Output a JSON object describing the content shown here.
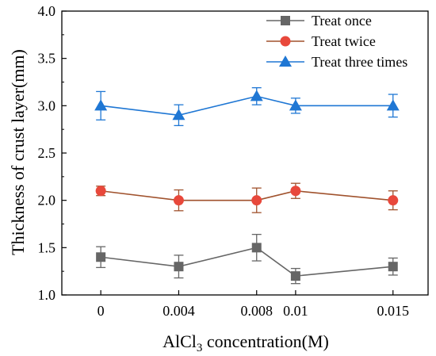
{
  "chart_data": {
    "type": "line",
    "x": [
      "0",
      "0.004",
      "0.008",
      "0.01",
      "0.015"
    ],
    "x_values": [
      0,
      0.004,
      0.008,
      0.01,
      0.015
    ],
    "xlabel": {
      "prefix": "AlCl",
      "subscript": "3",
      "suffix": " concentration(M)"
    },
    "ylabel": "Thickness of crust layer(mm)",
    "ylim": [
      1.0,
      4.0
    ],
    "xlim": [
      -0.002,
      0.0168
    ],
    "yticks": [
      "1.0",
      "1.5",
      "2.0",
      "2.5",
      "3.0",
      "3.5",
      "4.0"
    ],
    "ytick_values": [
      1.0,
      1.5,
      2.0,
      2.5,
      3.0,
      3.5,
      4.0
    ],
    "grid": false,
    "legend_position": "top-right",
    "series": [
      {
        "name": "Treat once",
        "values": [
          1.4,
          1.3,
          1.5,
          1.2,
          1.3
        ],
        "errors": [
          0.11,
          0.12,
          0.14,
          0.08,
          0.09
        ],
        "color": "#666666",
        "marker": "square"
      },
      {
        "name": "Treat twice",
        "values": [
          2.1,
          2.0,
          2.0,
          2.1,
          2.0
        ],
        "errors": [
          0.05,
          0.11,
          0.13,
          0.08,
          0.1
        ],
        "color": "#a0522d",
        "marker_color": "#e8483b",
        "marker": "circle"
      },
      {
        "name": "Treat three times",
        "values": [
          3.0,
          2.9,
          3.1,
          3.0,
          3.0
        ],
        "errors": [
          0.15,
          0.11,
          0.09,
          0.08,
          0.12
        ],
        "color": "#1f77d4",
        "marker": "triangle"
      }
    ]
  }
}
